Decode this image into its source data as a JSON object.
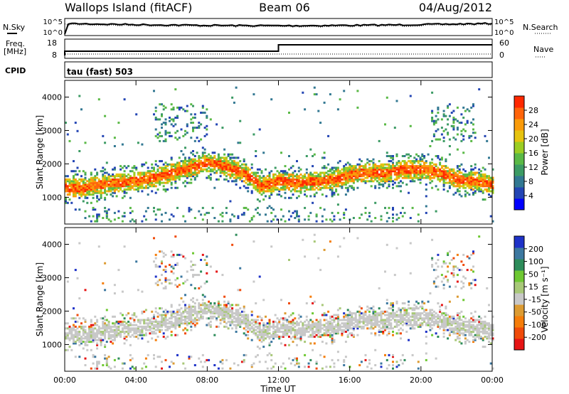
{
  "header": {
    "site": "Wallops Island (fitACF)",
    "beam": "Beam 06",
    "date": "04/Aug/2012"
  },
  "info_panels": {
    "nsky_label": "N.Sky",
    "nsky_ticks": [
      "10^5",
      "10^0"
    ],
    "nsearch_label": "N.Search",
    "nsearch_ticks": [
      "10^5",
      "10^0"
    ],
    "freq_label_1": "Freq.",
    "freq_label_2": "[MHz]",
    "freq_ticks": [
      "18",
      "8"
    ],
    "nave_label": "Nave",
    "nave_ticks": [
      "60",
      "0"
    ],
    "cpid_label": "CPID",
    "cpid_value": "tau (fast) 503"
  },
  "chart_data": [
    {
      "type": "heatmap",
      "title": "",
      "xlabel": "",
      "ylabel": "Slant Range [km]",
      "x_ticks": [
        "00:00",
        "04:00",
        "08:00",
        "12:00",
        "16:00",
        "20:00",
        "00:00"
      ],
      "xlim_hours": [
        0,
        24
      ],
      "y_ticks": [
        1000,
        2000,
        3000,
        4000
      ],
      "ylim": [
        200,
        4500
      ],
      "colorbar": {
        "label": "Power [dB]",
        "ticks": [
          "4",
          "8",
          "12",
          "16",
          "20",
          "24",
          "28"
        ],
        "range": [
          0,
          30
        ],
        "colors": [
          "#0000ff",
          "#2345b4",
          "#327892",
          "#3c9b64",
          "#5ab946",
          "#9bcd23",
          "#e6c30f",
          "#fa9b0a",
          "#ff640a",
          "#ff2800"
        ]
      },
      "echo_band_center_km": [
        [
          0,
          1250
        ],
        [
          1,
          1260
        ],
        [
          2,
          1350
        ],
        [
          3,
          1400
        ],
        [
          4,
          1450
        ],
        [
          5,
          1550
        ],
        [
          6,
          1700
        ],
        [
          7,
          1850
        ],
        [
          8,
          2000
        ],
        [
          9,
          1900
        ],
        [
          10,
          1700
        ],
        [
          11,
          1300
        ],
        [
          12,
          1450
        ],
        [
          13,
          1400
        ],
        [
          14,
          1450
        ],
        [
          15,
          1500
        ],
        [
          16,
          1650
        ],
        [
          17,
          1700
        ],
        [
          18,
          1700
        ],
        [
          19,
          1800
        ],
        [
          20,
          1800
        ],
        [
          21,
          1700
        ],
        [
          22,
          1500
        ],
        [
          23,
          1450
        ],
        [
          24,
          1350
        ]
      ]
    },
    {
      "type": "heatmap",
      "title": "",
      "xlabel": "Time UT",
      "ylabel": "Slant Range [km]",
      "x_ticks": [
        "00:00",
        "04:00",
        "08:00",
        "12:00",
        "16:00",
        "20:00",
        "00:00"
      ],
      "xlim_hours": [
        0,
        24
      ],
      "y_ticks": [
        1000,
        2000,
        3000,
        4000
      ],
      "ylim": [
        200,
        4500
      ],
      "colorbar": {
        "label": "Velocity [m s⁻¹]",
        "ticks": [
          "200",
          "100",
          "50",
          "15",
          "-15",
          "-50",
          "-100",
          "-200"
        ],
        "colors": [
          "#1e32c8",
          "#3c78a0",
          "#2d8c5a",
          "#6ec832",
          "#a8c878",
          "#c8c8c8",
          "#dc9b32",
          "#f57d0a",
          "#f04b0a",
          "#e61414"
        ]
      }
    }
  ]
}
